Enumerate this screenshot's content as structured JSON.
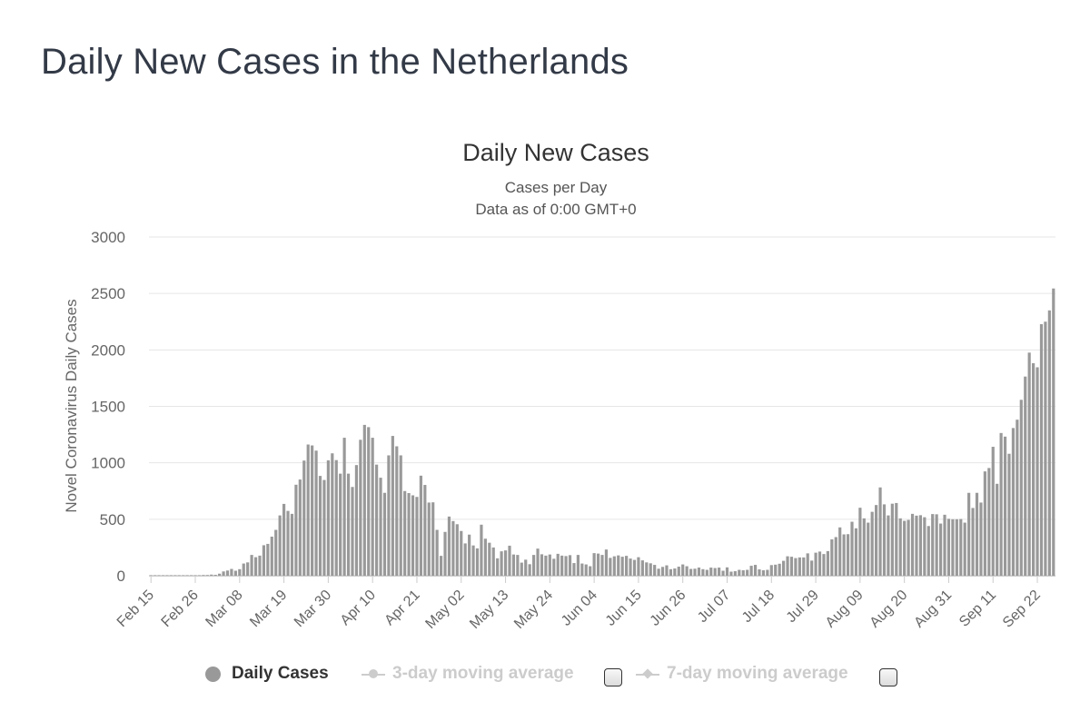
{
  "page": {
    "title": "Daily New Cases in the Netherlands"
  },
  "legend": {
    "daily_label": "Daily Cases",
    "ma3_label": "3-day moving average",
    "ma7_label": "7-day moving average"
  },
  "colors": {
    "bar": "#999999",
    "grid": "#e6e6e6",
    "axis_text": "#666666",
    "title": "#333333",
    "inactive": "#cccccc"
  },
  "chart_data": {
    "type": "bar",
    "title": "Daily New Cases",
    "subtitle_lines": [
      "Cases per Day",
      "Data as of 0:00 GMT+0"
    ],
    "xlabel": "",
    "ylabel": "Novel Coronavirus Daily Cases",
    "ylim": [
      0,
      3000
    ],
    "yticks": [
      0,
      500,
      1000,
      1500,
      2000,
      2500,
      3000
    ],
    "start_date": "Feb 15",
    "xtick_labels": [
      "Feb 15",
      "Feb 26",
      "Mar 08",
      "Mar 19",
      "Mar 30",
      "Apr 10",
      "Apr 21",
      "May 02",
      "May 13",
      "May 24",
      "Jun 04",
      "Jun 15",
      "Jun 26",
      "Jul 07",
      "Jul 18",
      "Jul 29",
      "Aug 09",
      "Aug 20",
      "Aug 31",
      "Sep 11",
      "Sep 22"
    ],
    "xtick_every": 11,
    "series": [
      {
        "name": "Daily Cases",
        "values": [
          0,
          0,
          0,
          0,
          0,
          0,
          0,
          0,
          0,
          0,
          0,
          0,
          0,
          1,
          6,
          10,
          8,
          18,
          38,
          46,
          60,
          44,
          58,
          108,
          118,
          184,
          164,
          178,
          270,
          282,
          346,
          406,
          534,
          636,
          574,
          548,
          806,
          852,
          1020,
          1162,
          1154,
          1108,
          884,
          848,
          1022,
          1084,
          1024,
          904,
          1222,
          904,
          786,
          980,
          1204,
          1336,
          1316,
          1222,
          984,
          868,
          734,
          1066,
          1238,
          1146,
          1066,
          750,
          732,
          712,
          698,
          886,
          804,
          648,
          650,
          406,
          176,
          388,
          524,
          484,
          456,
          396,
          286,
          364,
          268,
          242,
          452,
          328,
          292,
          250,
          154,
          216,
          224,
          266,
          188,
          184,
          116,
          142,
          102,
          184,
          240,
          190,
          178,
          188,
          150,
          194,
          178,
          174,
          182,
          112,
          184,
          108,
          100,
          84,
          200,
          196,
          184,
          232,
          158,
          172,
          180,
          168,
          176,
          152,
          140,
          164,
          136,
          118,
          110,
          96,
          62,
          78,
          92,
          58,
          64,
          80,
          100,
          84,
          60,
          62,
          72,
          58,
          52,
          72,
          68,
          72,
          44,
          74,
          36,
          40,
          52,
          48,
          52,
          88,
          96,
          56,
          48,
          52,
          94,
          98,
          106,
          132,
          172,
          168,
          156,
          162,
          162,
          198,
          134,
          204,
          214,
          192,
          218,
          322,
          342,
          428,
          366,
          368,
          478,
          420,
          602,
          508,
          470,
          566,
          626,
          782,
          632,
          534,
          638,
          644,
          508,
          486,
          494,
          548,
          532,
          536,
          518,
          440,
          546,
          544,
          462,
          540,
          504,
          500,
          500,
          502,
          470,
          734,
          600,
          734,
          648,
          924,
          954,
          1142,
          814,
          1264,
          1232,
          1080,
          1308,
          1382,
          1558,
          1764,
          1976,
          1882,
          1846,
          2228,
          2250,
          2350,
          2544
        ]
      }
    ]
  }
}
